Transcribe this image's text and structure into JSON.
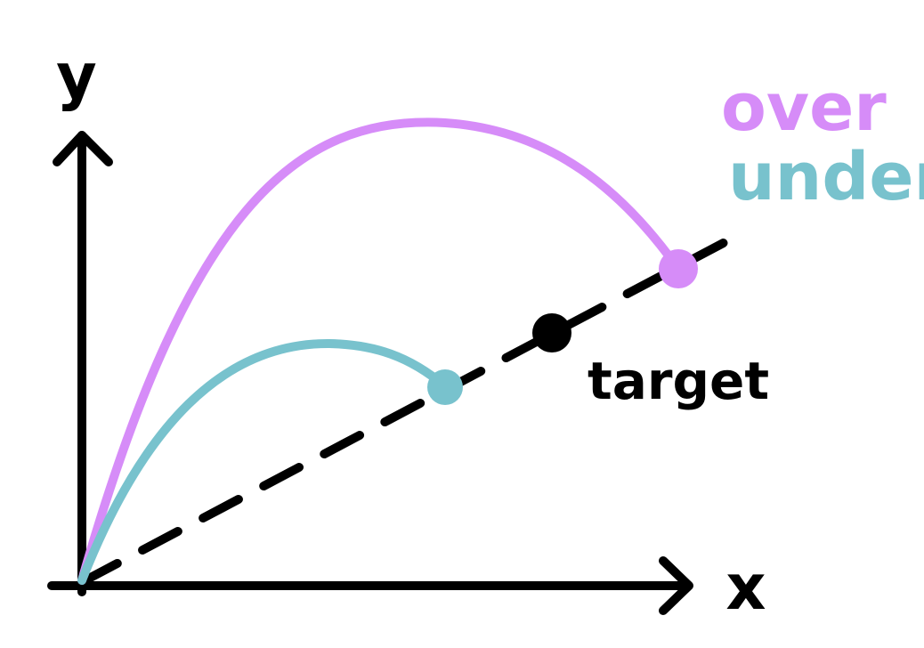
{
  "axes": {
    "x_label": "x",
    "y_label": "y"
  },
  "legend": {
    "over": {
      "label": "over",
      "color": "#d68cf8"
    },
    "under": {
      "label": "under",
      "color": "#78c2cd"
    }
  },
  "target": {
    "label": "target",
    "color": "#000000"
  },
  "colors": {
    "axis": "#000000",
    "target_line": "#000000"
  }
}
